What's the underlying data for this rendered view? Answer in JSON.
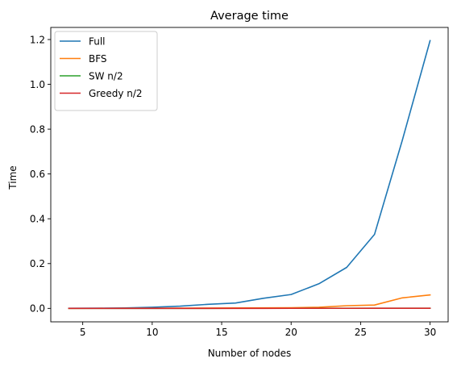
{
  "chart_data": {
    "type": "line",
    "title": "Average time",
    "xlabel": "Number of nodes",
    "ylabel": "Time",
    "xlim": [
      2.7,
      31.3
    ],
    "ylim": [
      -0.06,
      1.254
    ],
    "xticks": [
      5,
      10,
      15,
      20,
      25,
      30
    ],
    "yticks": [
      0.0,
      0.2,
      0.4,
      0.6,
      0.8,
      1.0,
      1.2
    ],
    "xtick_labels": [
      "5",
      "10",
      "15",
      "20",
      "25",
      "30"
    ],
    "ytick_labels": [
      "0.0",
      "0.2",
      "0.4",
      "0.6",
      "0.8",
      "1.0",
      "1.2"
    ],
    "grid": false,
    "legend_position": "top-left",
    "x": [
      4,
      6,
      8,
      10,
      12,
      14,
      16,
      18,
      20,
      22,
      24,
      26,
      28,
      30
    ],
    "series": [
      {
        "name": "Full",
        "color": "#1f77b4",
        "values": [
          0.0005,
          0.001,
          0.002,
          0.005,
          0.01,
          0.018,
          0.024,
          0.045,
          0.062,
          0.11,
          0.183,
          0.33,
          0.75,
          1.195
        ]
      },
      {
        "name": "BFS",
        "color": "#ff7f0e",
        "values": [
          0.0002,
          0.0003,
          0.0005,
          0.0007,
          0.001,
          0.0015,
          0.002,
          0.0025,
          0.003,
          0.005,
          0.012,
          0.015,
          0.047,
          0.06
        ]
      },
      {
        "name": "SW n/2",
        "color": "#2ca02c",
        "values": [
          0.0001,
          0.0001,
          0.0001,
          0.0002,
          0.0002,
          0.0002,
          0.0003,
          0.0003,
          0.0003,
          0.0004,
          0.0004,
          0.0005,
          0.0005,
          0.0006
        ]
      },
      {
        "name": "Greedy n/2",
        "color": "#d62728",
        "values": [
          0.0001,
          0.0001,
          0.0001,
          0.0001,
          0.0002,
          0.0002,
          0.0002,
          0.0002,
          0.0003,
          0.0003,
          0.0003,
          0.0004,
          0.0004,
          0.0005
        ]
      }
    ]
  }
}
